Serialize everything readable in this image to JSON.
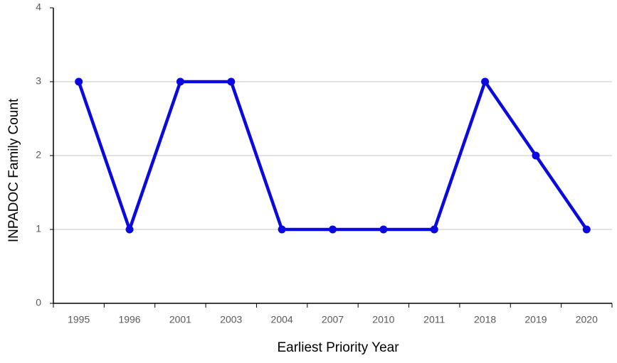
{
  "chart_data": {
    "type": "line",
    "x_label": "Earliest Priority Year",
    "y_label": "INPADOC Family Count",
    "categories": [
      "1995",
      "1996",
      "2001",
      "2003",
      "2004",
      "2007",
      "2010",
      "2011",
      "2018",
      "2019",
      "2020"
    ],
    "values": [
      3,
      1,
      3,
      3,
      1,
      1,
      1,
      1,
      3,
      2,
      1
    ],
    "color": "#0a0ae0",
    "ylim": [
      0,
      4
    ],
    "yticks": [
      0,
      1,
      2,
      3,
      4
    ],
    "grid": true
  }
}
